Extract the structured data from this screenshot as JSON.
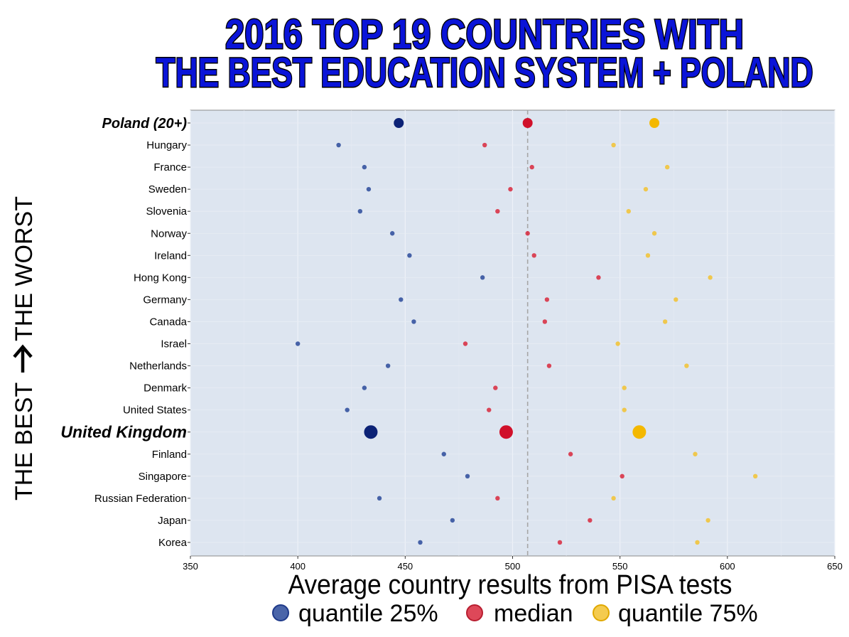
{
  "chart_data": {
    "type": "scatter",
    "title_lines": [
      "2016 TOP 19 COUNTRIES WITH",
      "THE BEST EDUCATION SYSTEM + POLAND"
    ],
    "xlabel": "Average country results from PISA tests",
    "ylabel_left": "THE BEST",
    "ylabel_right": "THE WORST",
    "xlim": [
      350,
      650
    ],
    "xticks": [
      "350",
      "400",
      "450",
      "500",
      "550",
      "600",
      "650"
    ],
    "reference_line_x": 507,
    "legend_position": "bottom",
    "colors": {
      "quantile_25": "#2a4a9a",
      "median": "#d8283c",
      "quantile_75": "#f2c230",
      "highlight_q25": "#0c2276",
      "highlight_median": "#d0102a",
      "highlight_q75": "#f4b800",
      "panel": "#dde5f0",
      "reference_line": "#a6a6a6"
    },
    "series": [
      {
        "name": "quantile 25%",
        "key": "q25"
      },
      {
        "name": "median",
        "key": "median"
      },
      {
        "name": "quantile 75%",
        "key": "q75"
      }
    ],
    "countries": [
      {
        "name": "Poland (20+)",
        "q25": 447,
        "median": 507,
        "q75": 566,
        "highlight": true
      },
      {
        "name": "Hungary",
        "q25": 419,
        "median": 487,
        "q75": 547
      },
      {
        "name": "France",
        "q25": 431,
        "median": 509,
        "q75": 572
      },
      {
        "name": "Sweden",
        "q25": 433,
        "median": 499,
        "q75": 562
      },
      {
        "name": "Slovenia",
        "q25": 429,
        "median": 493,
        "q75": 554
      },
      {
        "name": "Norway",
        "q25": 444,
        "median": 507,
        "q75": 566
      },
      {
        "name": "Ireland",
        "q25": 452,
        "median": 510,
        "q75": 563
      },
      {
        "name": "Hong Kong",
        "q25": 486,
        "median": 540,
        "q75": 592
      },
      {
        "name": "Germany",
        "q25": 448,
        "median": 516,
        "q75": 576
      },
      {
        "name": "Canada",
        "q25": 454,
        "median": 515,
        "q75": 571
      },
      {
        "name": "Israel",
        "q25": 400,
        "median": 478,
        "q75": 549
      },
      {
        "name": "Netherlands",
        "q25": 442,
        "median": 517,
        "q75": 581
      },
      {
        "name": "Denmark",
        "q25": 431,
        "median": 492,
        "q75": 552
      },
      {
        "name": "United States",
        "q25": 423,
        "median": 489,
        "q75": 552
      },
      {
        "name": "United Kingdom",
        "q25": 434,
        "median": 497,
        "q75": 559,
        "highlight": true
      },
      {
        "name": "Finland",
        "q25": 468,
        "median": 527,
        "q75": 585
      },
      {
        "name": "Singapore",
        "q25": 479,
        "median": 551,
        "q75": 613
      },
      {
        "name": "Russian Federation",
        "q25": 438,
        "median": 493,
        "q75": 547
      },
      {
        "name": "Japan",
        "q25": 472,
        "median": 536,
        "q75": 591
      },
      {
        "name": "Korea",
        "q25": 457,
        "median": 522,
        "q75": 586
      }
    ]
  }
}
